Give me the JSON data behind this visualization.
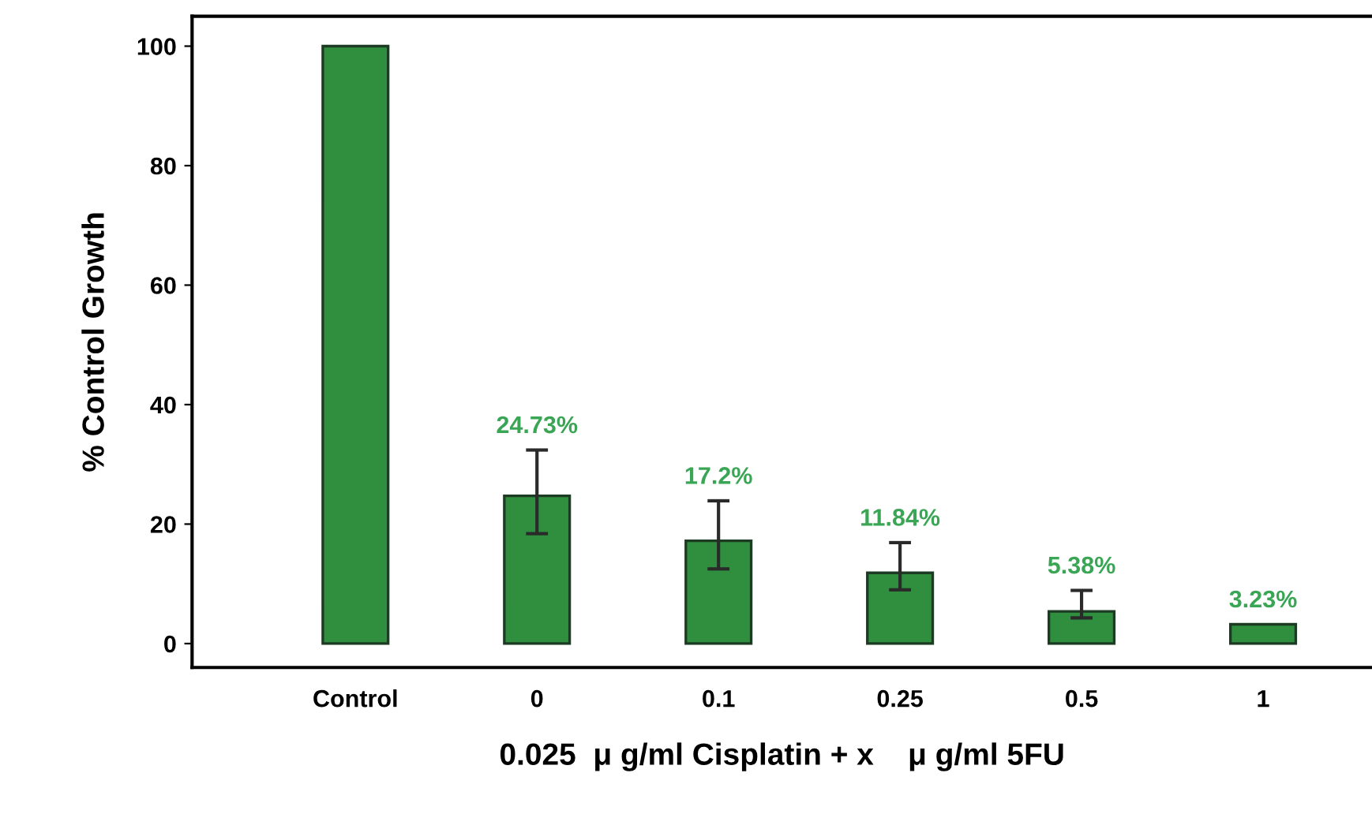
{
  "chart_data": {
    "type": "bar",
    "xlabel": "0.025  μ g/ml Cisplatin + x    μ g/ml 5FU",
    "ylabel": "% Control Growth",
    "categories": [
      "Control",
      "0",
      "0.1",
      "0.25",
      "0.5",
      "1"
    ],
    "values": [
      100,
      24.73,
      17.2,
      11.84,
      5.38,
      3.23
    ],
    "value_labels": [
      null,
      "24.73%",
      "17.2%",
      "11.84%",
      "5.38%",
      "3.23%"
    ],
    "errors": [
      null,
      [
        18.4,
        32.4
      ],
      [
        12.5,
        23.9
      ],
      [
        9.0,
        16.9
      ],
      [
        4.3,
        8.9
      ],
      null
    ],
    "color": "#2f8f3f",
    "ylim": [
      -4,
      105
    ],
    "yticks": [
      0,
      20,
      40,
      60,
      80,
      100
    ],
    "grid": false,
    "legend": false
  }
}
